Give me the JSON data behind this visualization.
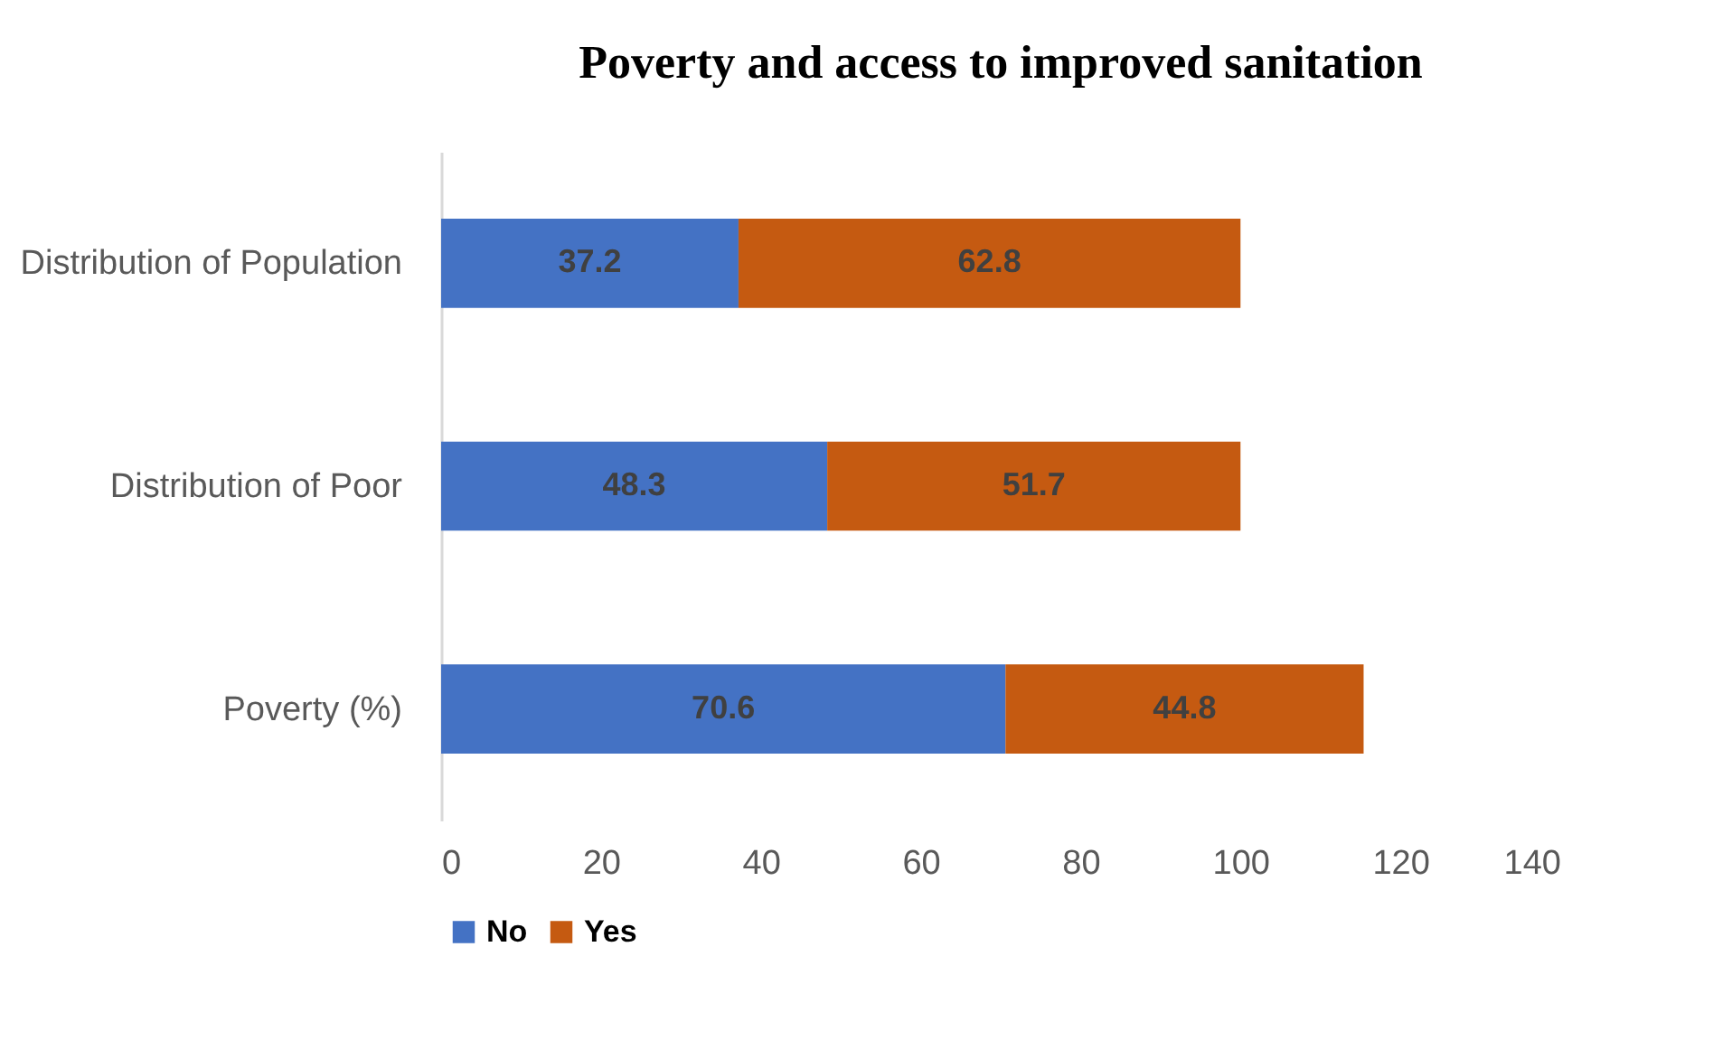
{
  "chart_data": {
    "type": "bar",
    "orientation": "horizontal",
    "stacked": true,
    "title": "Poverty and access to improved sanitation",
    "categories": [
      "Distribution of Population",
      "Distribution of Poor",
      "Poverty (%)"
    ],
    "series": [
      {
        "name": "No",
        "color": "#4472c4",
        "values": [
          37.2,
          48.3,
          70.6
        ]
      },
      {
        "name": "Yes",
        "color": "#c55a11",
        "values": [
          62.8,
          51.7,
          44.8
        ]
      }
    ],
    "xlim": [
      0,
      140
    ],
    "xticks": [
      0,
      20,
      40,
      60,
      80,
      100,
      120,
      140
    ],
    "grid": false,
    "legend": "bottom",
    "data_labels": true
  }
}
